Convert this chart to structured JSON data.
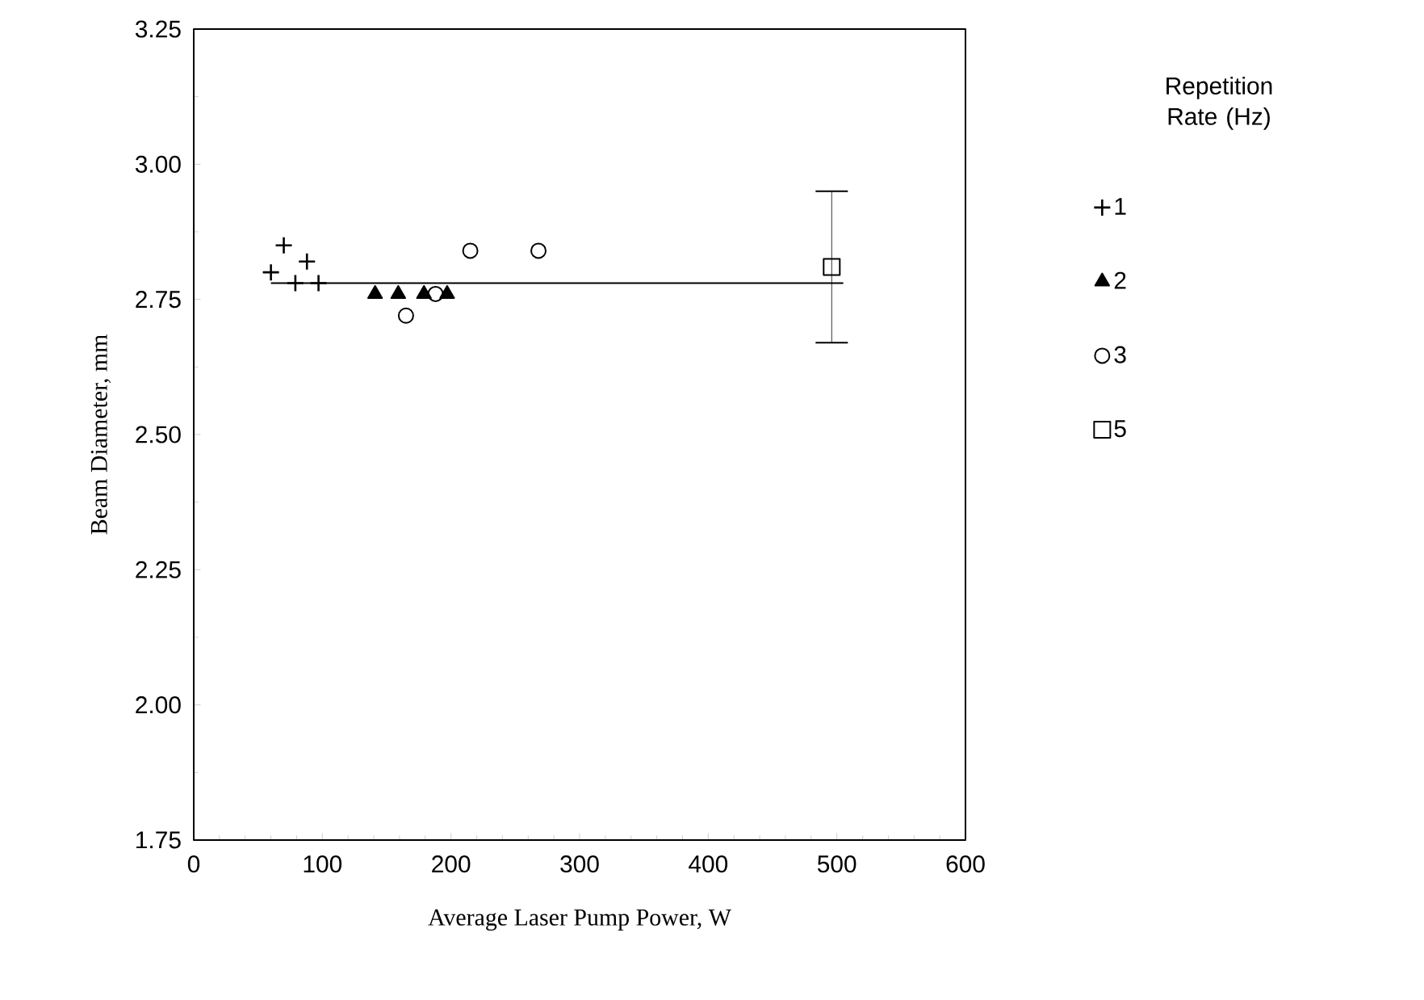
{
  "chart_data": {
    "type": "scatter",
    "xlabel": "Average Laser Pump Power, W",
    "ylabel": "Beam Diameter, mm",
    "legend_title": "Repetition Rate (Hz)",
    "legend": "right",
    "xlim": [
      0,
      600
    ],
    "xticks": [
      0,
      100,
      200,
      300,
      400,
      500,
      600
    ],
    "ylim": [
      1.75,
      3.25
    ],
    "yticks": [
      {
        "value": 1.75,
        "label": "1.75"
      },
      {
        "value": 2.0,
        "label": "2.00"
      },
      {
        "value": 2.25,
        "label": "2.25"
      },
      {
        "value": 2.5,
        "label": "2.50"
      },
      {
        "value": 2.75,
        "label": "2.75"
      },
      {
        "value": 3.0,
        "label": "3.00"
      },
      {
        "value": 3.25,
        "label": "3.25"
      }
    ],
    "grid": false,
    "series": [
      {
        "name": "1",
        "color": "#000000",
        "marker": "cross",
        "x": [
          60,
          70,
          79,
          88,
          97
        ],
        "values": [
          2.8,
          2.85,
          2.78,
          2.82,
          2.78
        ]
      },
      {
        "name": "2",
        "color": "#000000",
        "marker": "triangle",
        "x": [
          141,
          159,
          179,
          197
        ],
        "values": [
          2.76,
          2.76,
          2.76,
          2.76
        ]
      },
      {
        "name": "3",
        "color": "#000000",
        "marker": "circle",
        "x": [
          165,
          188,
          215,
          268
        ],
        "values": [
          2.72,
          2.76,
          2.84,
          2.84
        ]
      },
      {
        "name": "5",
        "color": "#000000",
        "marker": "square",
        "x": [
          496
        ],
        "values": [
          2.81
        ],
        "errors": [
          0.14
        ]
      },
      {
        "type": "line",
        "color": "#000000",
        "marker": "none",
        "x": [
          60,
          505
        ],
        "values": [
          2.78,
          2.78
        ]
      }
    ]
  }
}
